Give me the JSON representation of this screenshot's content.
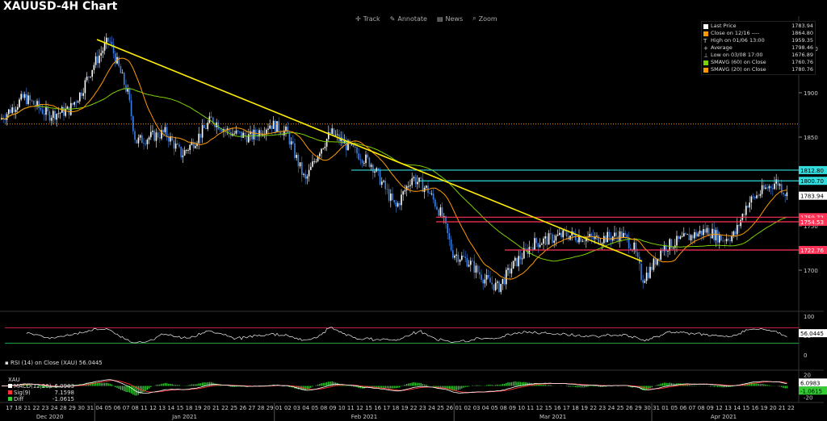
{
  "title": "XAUUSD-4H Chart",
  "toolbar": [
    {
      "label": "Track",
      "icon": "crosshair-icon"
    },
    {
      "label": "Annotate",
      "icon": "pencil-icon"
    },
    {
      "label": "News",
      "icon": "news-icon"
    },
    {
      "label": "Zoom",
      "icon": "zoom-icon"
    }
  ],
  "legend": [
    {
      "label": "Last Price",
      "value": "1783.94",
      "color": "#ffffff"
    },
    {
      "label": "Close on 12/16 ----",
      "value": "1864.80",
      "color": "#ff9900"
    },
    {
      "label": "High on 01/06 13:00",
      "value": "1959.35",
      "color": "#dddddd"
    },
    {
      "label": "Average",
      "value": "1798.46",
      "color": "#dddddd"
    },
    {
      "label": "Low on 03/08 17:00",
      "value": "1676.89",
      "color": "#dddddd"
    },
    {
      "label": "SMAVG (60)  on Close",
      "value": "1760.76",
      "color": "#7fd000"
    },
    {
      "label": "SMAVG (20)  on Close",
      "value": "1780.76",
      "color": "#ff9900"
    }
  ],
  "colors": {
    "candle_up": "#ffffff",
    "candle_down": "#3c7fe0",
    "sma20": "#ff9900",
    "sma60": "#7fd000",
    "trendline": "#ffee00",
    "resistance": "#33dddd",
    "support": "#ff3355",
    "prev_close": "#ff9900"
  },
  "chart_data": {
    "type": "candlestick",
    "y_ticks": [
      "1950",
      "1900",
      "1850",
      "1800",
      "1750",
      "1700"
    ],
    "ylim": [
      1655,
      1970
    ],
    "day_labels": [
      "17",
      "18",
      "21",
      "22",
      "23",
      "24",
      "28",
      "29",
      "30",
      "31",
      "04",
      "05",
      "06",
      "07",
      "08",
      "11",
      "12",
      "13",
      "14",
      "15",
      "18",
      "19",
      "20",
      "21",
      "22",
      "25",
      "26",
      "27",
      "28",
      "29",
      "01",
      "02",
      "03",
      "04",
      "05",
      "08",
      "09",
      "10",
      "11",
      "12",
      "15",
      "16",
      "17",
      "18",
      "19",
      "22",
      "23",
      "24",
      "25",
      "26",
      "01",
      "02",
      "03",
      "04",
      "05",
      "08",
      "09",
      "10",
      "11",
      "12",
      "15",
      "16",
      "17",
      "18",
      "19",
      "22",
      "23",
      "24",
      "25",
      "26",
      "29",
      "30",
      "31",
      "01",
      "05",
      "06",
      "07",
      "08",
      "09",
      "12",
      "13",
      "14",
      "15",
      "16",
      "19",
      "20",
      "21",
      "22"
    ],
    "month_labels": [
      "Dec 2020",
      "Jan 2021",
      "Feb 2021",
      "Mar 2021",
      "Apr 2021"
    ],
    "price_waypoints": [
      [
        0,
        1870
      ],
      [
        30,
        1895
      ],
      [
        60,
        1875
      ],
      [
        85,
        1880
      ],
      [
        100,
        1900
      ],
      [
        115,
        1930
      ],
      [
        135,
        1960
      ],
      [
        150,
        1920
      ],
      [
        158,
        1900
      ],
      [
        168,
        1845
      ],
      [
        185,
        1850
      ],
      [
        205,
        1855
      ],
      [
        225,
        1830
      ],
      [
        245,
        1850
      ],
      [
        262,
        1870
      ],
      [
        285,
        1855
      ],
      [
        310,
        1850
      ],
      [
        335,
        1865
      ],
      [
        355,
        1855
      ],
      [
        378,
        1800
      ],
      [
        395,
        1835
      ],
      [
        410,
        1855
      ],
      [
        430,
        1840
      ],
      [
        460,
        1820
      ],
      [
        490,
        1770
      ],
      [
        510,
        1805
      ],
      [
        530,
        1790
      ],
      [
        548,
        1760
      ],
      [
        560,
        1720
      ],
      [
        580,
        1710
      ],
      [
        600,
        1690
      ],
      [
        617,
        1680
      ],
      [
        635,
        1705
      ],
      [
        660,
        1730
      ],
      [
        700,
        1740
      ],
      [
        740,
        1735
      ],
      [
        770,
        1740
      ],
      [
        785,
        1725
      ],
      [
        795,
        1690
      ],
      [
        805,
        1700
      ],
      [
        820,
        1725
      ],
      [
        860,
        1740
      ],
      [
        875,
        1745
      ],
      [
        895,
        1735
      ],
      [
        910,
        1740
      ],
      [
        925,
        1775
      ],
      [
        945,
        1790
      ],
      [
        962,
        1800
      ],
      [
        975,
        1783.94
      ]
    ],
    "hlines": [
      {
        "value": "1864.80",
        "style": "dotted",
        "color": "#ff9900"
      },
      {
        "value": "1812.80",
        "color": "#33dddd"
      },
      {
        "value": "1800.70",
        "color": "#33dddd"
      },
      {
        "value": "1759.72",
        "color": "#ff3355"
      },
      {
        "value": "1754.53",
        "color": "#ff3355"
      },
      {
        "value": "1722.76",
        "color": "#ff3355"
      }
    ],
    "trendline": {
      "from": [
        "04 Jan 2021",
        1960
      ],
      "to": [
        "22 Mar 2021",
        1710
      ]
    },
    "price_tags": {
      "last": "1783.94"
    },
    "rsi": {
      "label": "RSI (14)  on Close (XAU) 56.0445",
      "value": "56.0445",
      "ticks": [
        "100",
        "50",
        "0"
      ],
      "overbought": 70,
      "oversold": 30
    },
    "macd": {
      "header": "XAU",
      "lines": [
        {
          "label": "MACD(12,26)",
          "value": "6.0983",
          "color": "#ffffff"
        },
        {
          "label": "Sig(9)",
          "value": "7.1598",
          "color": "#ff3333"
        },
        {
          "label": "Diff",
          "value": "-1.0615",
          "color": "#33cc33"
        }
      ],
      "ticks": [
        "20",
        "0",
        "-20"
      ],
      "tags": [
        "6.0983",
        "-1.0615"
      ]
    }
  }
}
